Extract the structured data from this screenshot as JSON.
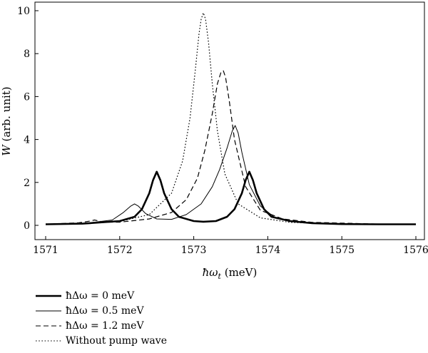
{
  "chart_data": {
    "type": "line",
    "xlabel_parts": [
      "ħω",
      "t",
      " (meV)"
    ],
    "ylabel_parts": [
      "W",
      " (arb. unit)"
    ],
    "xlim": [
      1571,
      1576
    ],
    "ylim": [
      0,
      10.2
    ],
    "x_ticks": [
      "1571",
      "1572",
      "1573",
      "1574",
      "1575",
      "1576"
    ],
    "y_ticks": [
      "0",
      "2",
      "4",
      "6",
      "8",
      "10"
    ],
    "grid": false,
    "legend_position": "below",
    "series": [
      {
        "name": "ħΔω = 0 meV",
        "style": "thick-solid",
        "x": [
          1571.0,
          1571.5,
          1572.0,
          1572.2,
          1572.3,
          1572.4,
          1572.45,
          1572.5,
          1572.55,
          1572.6,
          1572.7,
          1572.8,
          1573.0,
          1573.13,
          1573.3,
          1573.45,
          1573.55,
          1573.65,
          1573.7,
          1573.75,
          1573.8,
          1573.85,
          1573.95,
          1574.05,
          1574.3,
          1574.6,
          1575.0,
          1575.5,
          1576.0
        ],
        "y": [
          0.05,
          0.08,
          0.2,
          0.4,
          0.75,
          1.5,
          2.1,
          2.5,
          2.1,
          1.5,
          0.75,
          0.4,
          0.2,
          0.17,
          0.2,
          0.4,
          0.75,
          1.5,
          2.1,
          2.5,
          2.1,
          1.5,
          0.75,
          0.4,
          0.2,
          0.1,
          0.06,
          0.05,
          0.05
        ]
      },
      {
        "name": "ħΔω = 0.5 meV",
        "style": "thin-solid",
        "x": [
          1571.0,
          1571.5,
          1571.9,
          1572.05,
          1572.15,
          1572.2,
          1572.25,
          1572.35,
          1572.5,
          1572.7,
          1572.9,
          1573.1,
          1573.25,
          1573.35,
          1573.45,
          1573.52,
          1573.56,
          1573.6,
          1573.65,
          1573.75,
          1573.9,
          1574.1,
          1574.4,
          1575.0,
          1576.0
        ],
        "y": [
          0.05,
          0.08,
          0.25,
          0.6,
          0.9,
          1.0,
          0.9,
          0.55,
          0.3,
          0.28,
          0.5,
          1.0,
          1.8,
          2.6,
          3.6,
          4.4,
          4.65,
          4.3,
          3.4,
          1.9,
          0.9,
          0.35,
          0.15,
          0.07,
          0.05
        ]
      },
      {
        "name": "ħΔω = 1.2 meV",
        "style": "dashed",
        "x": [
          1571.0,
          1571.45,
          1571.6,
          1571.66,
          1571.72,
          1571.8,
          1572.0,
          1572.4,
          1572.7,
          1572.9,
          1573.05,
          1573.15,
          1573.25,
          1573.32,
          1573.37,
          1573.4,
          1573.43,
          1573.48,
          1573.55,
          1573.7,
          1573.9,
          1574.2,
          1574.6,
          1575.5,
          1576.0
        ],
        "y": [
          0.05,
          0.12,
          0.2,
          0.25,
          0.2,
          0.15,
          0.15,
          0.3,
          0.6,
          1.2,
          2.2,
          3.5,
          5.2,
          6.6,
          7.15,
          7.2,
          6.9,
          5.8,
          4.0,
          1.8,
          0.7,
          0.3,
          0.14,
          0.06,
          0.05
        ]
      },
      {
        "name": "Without pump wave",
        "style": "dotted",
        "x": [
          1571.0,
          1571.5,
          1572.0,
          1572.4,
          1572.7,
          1572.85,
          1572.95,
          1573.02,
          1573.07,
          1573.1,
          1573.13,
          1573.16,
          1573.2,
          1573.25,
          1573.32,
          1573.42,
          1573.6,
          1573.9,
          1574.3,
          1575.0,
          1576.0
        ],
        "y": [
          0.05,
          0.08,
          0.18,
          0.5,
          1.5,
          3.0,
          5.0,
          7.2,
          8.9,
          9.6,
          9.9,
          9.6,
          8.5,
          6.6,
          4.4,
          2.4,
          1.0,
          0.35,
          0.14,
          0.06,
          0.05
        ]
      }
    ]
  }
}
